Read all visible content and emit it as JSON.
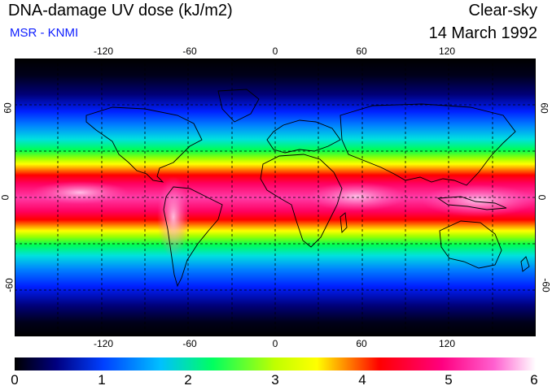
{
  "header": {
    "title": "DNA-damage UV dose (kJ/m2)",
    "source": "MSR - KNMI",
    "condition": "Clear-sky",
    "date": "14 March 1992"
  },
  "axes": {
    "lon_ticks": [
      "-120",
      "-60",
      "0",
      "60",
      "120"
    ],
    "lat_ticks": [
      "60",
      "0",
      "-60"
    ]
  },
  "colorbar": {
    "labels": [
      "0",
      "1",
      "2",
      "3",
      "4",
      "5",
      "6"
    ],
    "min": 0,
    "max": 6
  },
  "colors": {
    "background": "#ffffff",
    "source_text": "#1020ff",
    "coast": "#000000"
  }
}
